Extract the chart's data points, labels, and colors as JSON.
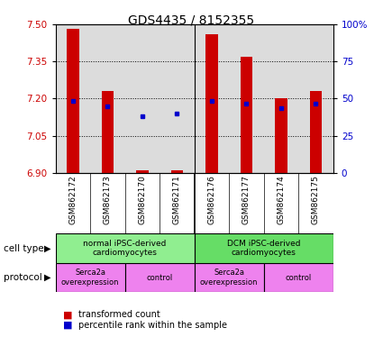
{
  "title": "GDS4435 / 8152355",
  "samples": [
    "GSM862172",
    "GSM862173",
    "GSM862170",
    "GSM862171",
    "GSM862176",
    "GSM862177",
    "GSM862174",
    "GSM862175"
  ],
  "red_bar_top": [
    7.48,
    7.23,
    6.91,
    6.91,
    7.46,
    7.37,
    7.2,
    7.23
  ],
  "red_bar_bottom": 6.9,
  "blue_dot_y": [
    7.19,
    7.17,
    7.13,
    7.14,
    7.19,
    7.18,
    7.16,
    7.18
  ],
  "ylim_left": [
    6.9,
    7.5
  ],
  "ylim_right": [
    0,
    100
  ],
  "yticks_left": [
    6.9,
    7.05,
    7.2,
    7.35,
    7.5
  ],
  "yticks_right": [
    0,
    25,
    50,
    75,
    100
  ],
  "ytick_labels_right": [
    "0",
    "25",
    "50",
    "75",
    "100%"
  ],
  "cell_type_groups": [
    {
      "label": "normal iPSC-derived\ncardiomyocytes",
      "start": 0,
      "end": 3,
      "color": "#90EE90"
    },
    {
      "label": "DCM iPSC-derived\ncardiomyocytes",
      "start": 4,
      "end": 7,
      "color": "#66DD66"
    }
  ],
  "protocol_groups": [
    {
      "label": "Serca2a\noverexpression",
      "start": 0,
      "end": 1,
      "color": "#EE82EE"
    },
    {
      "label": "control",
      "start": 2,
      "end": 3,
      "color": "#EE82EE"
    },
    {
      "label": "Serca2a\noverexpression",
      "start": 4,
      "end": 5,
      "color": "#EE82EE"
    },
    {
      "label": "control",
      "start": 6,
      "end": 7,
      "color": "#EE82EE"
    }
  ],
  "bar_color": "#CC0000",
  "dot_color": "#0000CC",
  "left_axis_color": "#CC0000",
  "right_axis_color": "#0000CC",
  "bg_color": "#FFFFFF",
  "plot_bg_color": "#DCDCDC",
  "sample_bg_color": "#C8C8C8",
  "legend_items": [
    {
      "label": "transformed count",
      "color": "#CC0000"
    },
    {
      "label": "percentile rank within the sample",
      "color": "#0000CC"
    }
  ],
  "bar_width": 0.35,
  "xlim": [
    -0.5,
    7.5
  ]
}
